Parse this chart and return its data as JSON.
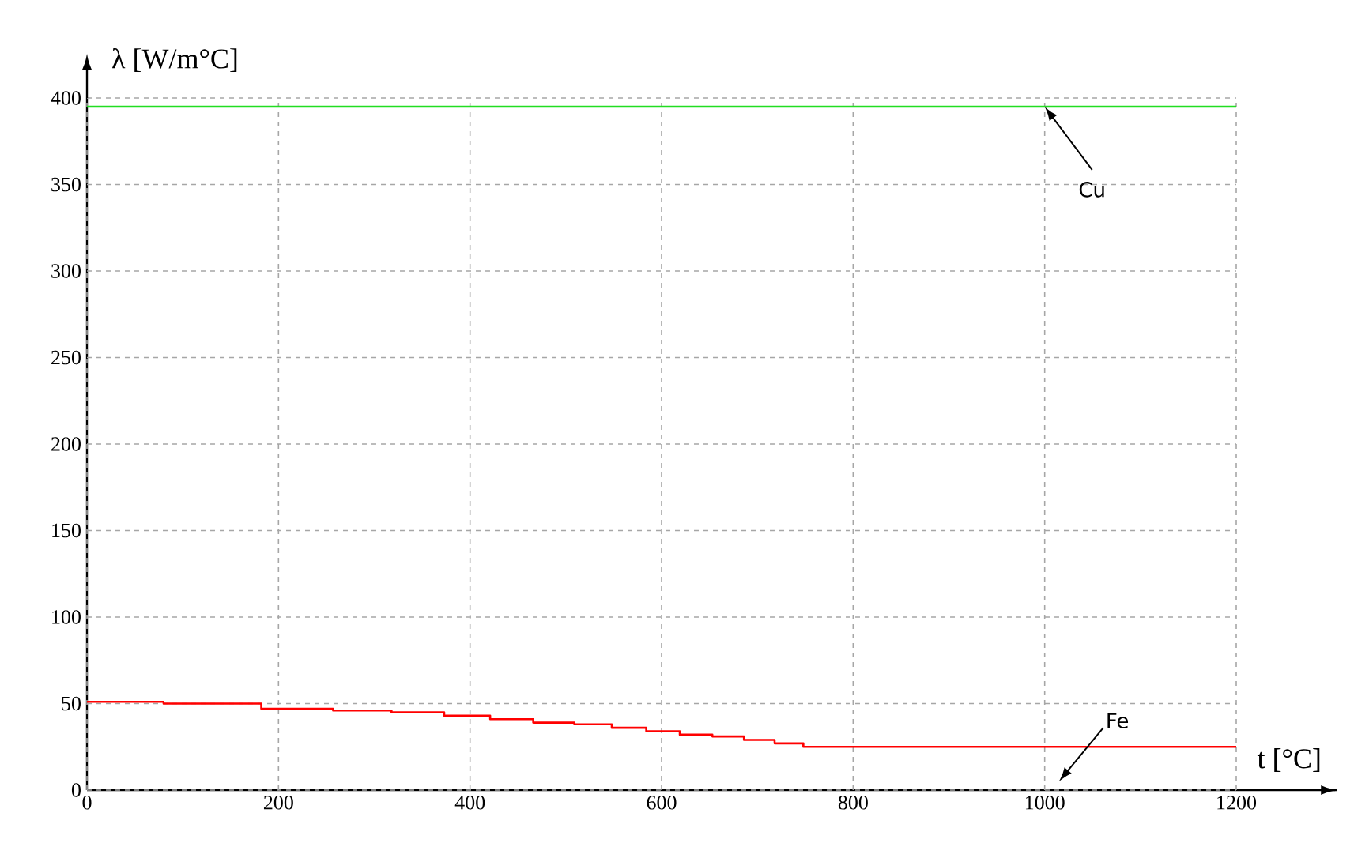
{
  "chart_data": {
    "type": "line",
    "xlabel": "t [°C]",
    "ylabel": "λ [W/m°C]",
    "series": [
      {
        "color": "#22dd22",
        "x": [
          0,
          1200
        ],
        "values": [
          395,
          395
        ]
      },
      {
        "type": "step",
        "color": "#ff0000",
        "x": [
          0,
          80,
          182,
          257,
          318,
          373,
          421,
          466,
          509,
          548,
          584,
          619,
          653,
          686,
          718,
          748,
          1200
        ],
        "values": [
          51,
          50,
          47,
          46,
          45,
          43,
          41,
          39,
          38,
          36,
          34,
          32,
          31,
          29,
          27,
          25,
          25
        ]
      }
    ],
    "annotations": [
      {
        "text": "Cu",
        "x": 1000,
        "y": 395
      },
      "Fe"
    ],
    "xlim": [
      0,
      1305
    ],
    "xticks": [
      0,
      200,
      400,
      600,
      800,
      1000,
      1200
    ],
    "ylim": [
      0,
      400
    ],
    "yticks": [
      0,
      50,
      100,
      150,
      200,
      250,
      300,
      350,
      400
    ],
    "grid": true,
    "marker": "none",
    "line_style": "solid"
  }
}
